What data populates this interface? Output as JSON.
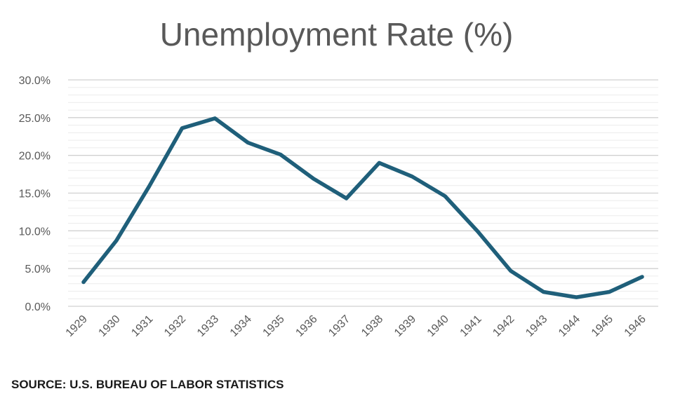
{
  "chart_data": {
    "type": "line",
    "title": "Unemployment Rate (%)",
    "xlabel": "",
    "ylabel": "",
    "categories": [
      "1929",
      "1930",
      "1931",
      "1932",
      "1933",
      "1934",
      "1935",
      "1936",
      "1937",
      "1938",
      "1939",
      "1940",
      "1941",
      "1942",
      "1943",
      "1944",
      "1945",
      "1946"
    ],
    "series": [
      {
        "values": [
          3.2,
          8.7,
          15.9,
          23.6,
          24.9,
          21.7,
          20.1,
          16.9,
          14.3,
          19.0,
          17.2,
          14.6,
          9.9,
          4.7,
          1.9,
          1.2,
          1.9,
          3.9
        ]
      }
    ],
    "ylim": [
      0,
      30
    ],
    "yticks": [
      "0.0%",
      "5.0%",
      "10.0%",
      "15.0%",
      "20.0%",
      "25.0%",
      "30.0%"
    ],
    "grid": true,
    "line_color": "#1f5f7a",
    "grid_color": "#d9d9d9"
  },
  "source": "SOURCE: U.S. BUREAU OF LABOR STATISTICS"
}
